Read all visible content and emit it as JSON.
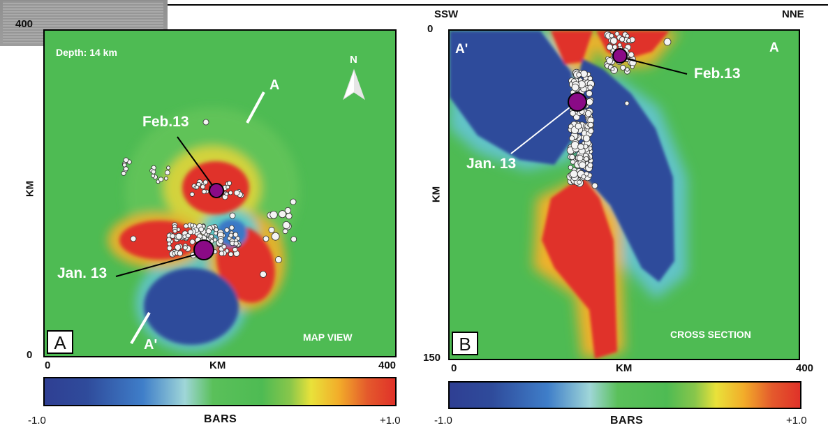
{
  "panel_a": {
    "letter": "A",
    "view_label": "MAP VIEW",
    "depth_label": "Depth: 14 km",
    "north_label": "N",
    "profile_end_a": "A",
    "profile_end_a_prime": "A'",
    "event_feb": "Feb.13",
    "event_jan": "Jan. 13",
    "y_top_tick": "400",
    "y_bottom_tick": "0",
    "y_axis_label": "KM",
    "x_left_tick": "0",
    "x_right_tick": "400",
    "x_axis_label": "KM"
  },
  "panel_b": {
    "letter": "B",
    "view_label": "CROSS SECTION",
    "left_direction": "SSW",
    "right_direction": "NNE",
    "left_end": "A'",
    "right_end": "A",
    "event_feb": "Feb.13",
    "event_jan": "Jan. 13",
    "y_top_tick": "0",
    "y_bottom_tick": "150",
    "y_axis_label": "KM",
    "x_left_tick": "0",
    "x_right_tick": "400",
    "x_axis_label": "KM"
  },
  "legend_a": {
    "min_label": "-1.0",
    "max_label": "+1.0",
    "title": "BARS"
  },
  "legend_b": {
    "min_label": "-1.0",
    "max_label": "+1.0",
    "title": "BARS"
  },
  "colors": {
    "background_green": "#4ebb53",
    "positive_red": "#e03229",
    "negative_blue": "#2f4b9b",
    "mainshock_purple": "#8a0a86",
    "aftershock_white": "#f4f4f4"
  }
}
